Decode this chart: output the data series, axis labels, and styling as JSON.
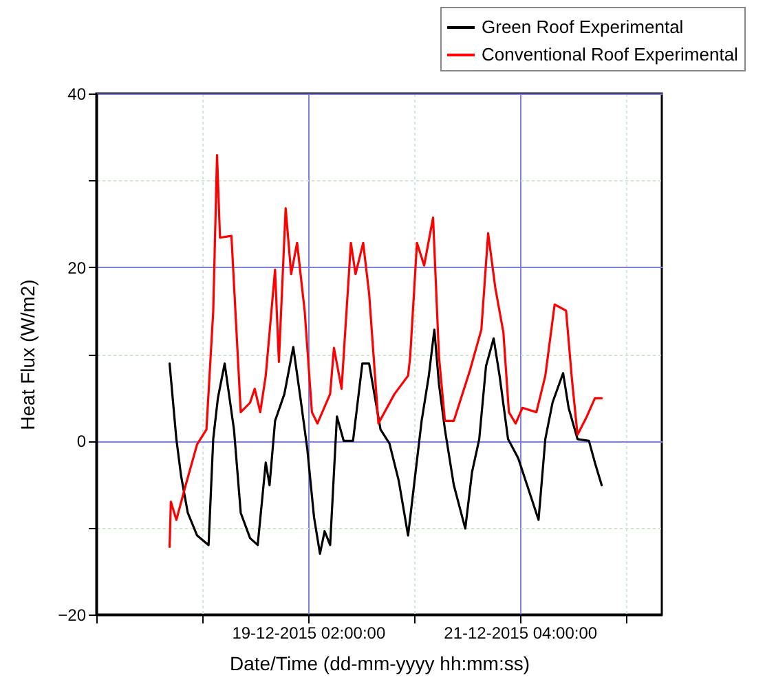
{
  "chart_data": {
    "type": "line",
    "xlabel": "Date/Time (dd-mm-yyyy hh:mm:ss)",
    "ylabel": "Heat Flux (W/m2)",
    "xlim": [
      "2015-12-17T00:00",
      "2015-12-22T13:30"
    ],
    "xticks": [
      {
        "value": "2015-12-17T00:00",
        "label": null
      },
      {
        "value": "2015-12-18T01:00",
        "label": null
      },
      {
        "value": "2015-12-19T02:00",
        "label": "19-12-2015 02:00:00"
      },
      {
        "value": "2015-12-20T03:00",
        "label": null
      },
      {
        "value": "2015-12-21T04:00",
        "label": "21-12-2015 04:00:00"
      },
      {
        "value": "2015-12-22T05:00",
        "label": null
      }
    ],
    "ylim": [
      -20,
      40
    ],
    "yticks": [
      -20,
      {
        "value": -10,
        "label": null
      },
      0,
      {
        "value": 10,
        "label": null
      },
      20,
      {
        "value": 30,
        "label": null
      },
      40
    ],
    "grid": true,
    "legend": "top right",
    "line_style": "solid",
    "series": [
      {
        "name": "Green Roof Experimental",
        "color": "#000000",
        "x": [
          "2015-12-17T17:18",
          "2015-12-17T18:54",
          "2015-12-17T20:00",
          "2015-12-17T21:36",
          "2015-12-17T23:48",
          "2015-12-18T02:30",
          "2015-12-18T03:36",
          "2015-12-18T04:42",
          "2015-12-18T06:18",
          "2015-12-18T08:30",
          "2015-12-18T10:06",
          "2015-12-18T12:18",
          "2015-12-18T14:06",
          "2015-12-18T16:00",
          "2015-12-18T16:54",
          "2015-12-18T18:12",
          "2015-12-18T20:24",
          "2015-12-18T22:30",
          "2015-12-19T00:12",
          "2015-12-19T01:48",
          "2015-12-19T03:24",
          "2015-12-19T04:48",
          "2015-12-19T05:54",
          "2015-12-19T07:12",
          "2015-12-19T08:48",
          "2015-12-19T10:24",
          "2015-12-19T12:36",
          "2015-12-19T14:48",
          "2015-12-19T16:24",
          "2015-12-19T19:06",
          "2015-12-19T21:12",
          "2015-12-19T23:24",
          "2015-12-20T01:36",
          "2015-12-20T04:48",
          "2015-12-20T06:30",
          "2015-12-20T07:48",
          "2015-12-20T08:54",
          "2015-12-20T10:18",
          "2015-12-20T12:24",
          "2015-12-20T15:06",
          "2015-12-20T16:42",
          "2015-12-20T18:24",
          "2015-12-20T20:00",
          "2015-12-20T21:48",
          "2015-12-20T23:12",
          "2015-12-21T01:12",
          "2015-12-21T03:36",
          "2015-12-21T05:42",
          "2015-12-21T08:24",
          "2015-12-21T10:00",
          "2015-12-21T11:42",
          "2015-12-21T14:12",
          "2015-12-21T15:30",
          "2015-12-21T17:36",
          "2015-12-21T20:18",
          "2015-12-21T21:42",
          "2015-12-21T23:18"
        ],
        "values": [
          8.9,
          0.2,
          -4,
          -8.3,
          -10.9,
          -12,
          0.2,
          4.9,
          8.9,
          1.3,
          -8.3,
          -11.2,
          -12,
          -2.5,
          -5.1,
          2.3,
          5.4,
          10.8,
          4.9,
          -0.9,
          -8.8,
          -13,
          -10.4,
          -12,
          2.8,
          0,
          0,
          8.9,
          8.9,
          1.3,
          -0.3,
          -4.6,
          -10.9,
          2.3,
          7.5,
          12.8,
          6.5,
          1.3,
          -5.1,
          -10.1,
          -3.6,
          0.2,
          8.6,
          11.8,
          7.5,
          0.2,
          -2,
          -5.1,
          -9.1,
          0.2,
          4.4,
          7.8,
          3.8,
          0.2,
          0,
          -2.5,
          -5.1
        ]
      },
      {
        "name": "Conventional Roof Experimental",
        "color": "#ff0000",
        "x": [
          "2015-12-17T17:18",
          "2015-12-17T17:36",
          "2015-12-17T18:54",
          "2015-12-17T21:06",
          "2015-12-17T23:48",
          "2015-12-18T02:00",
          "2015-12-18T03:36",
          "2015-12-18T04:30",
          "2015-12-18T05:12",
          "2015-12-18T07:54",
          "2015-12-18T10:06",
          "2015-12-18T12:18",
          "2015-12-18T13:24",
          "2015-12-18T14:42",
          "2015-12-18T16:00",
          "2015-12-18T18:12",
          "2015-12-18T19:06",
          "2015-12-18T20:42",
          "2015-12-18T22:00",
          "2015-12-18T23:24",
          "2015-12-19T01:12",
          "2015-12-19T02:54",
          "2015-12-19T04:12",
          "2015-12-19T07:12",
          "2015-12-19T08:06",
          "2015-12-19T09:54",
          "2015-12-19T12:06",
          "2015-12-19T13:12",
          "2015-12-19T15:00",
          "2015-12-19T16:24",
          "2015-12-19T18:36",
          "2015-12-19T22:24",
          "2015-12-20T01:36",
          "2015-12-20T02:06",
          "2015-12-20T03:42",
          "2015-12-20T05:24",
          "2015-12-20T07:30",
          "2015-12-20T08:54",
          "2015-12-20T10:18",
          "2015-12-20T12:24",
          "2015-12-20T16:12",
          "2015-12-20T18:54",
          "2015-12-20T20:30",
          "2015-12-20T22:12",
          "2015-12-21T00:06",
          "2015-12-21T01:24",
          "2015-12-21T03:00",
          "2015-12-21T04:36",
          "2015-12-21T07:54",
          "2015-12-21T10:00",
          "2015-12-21T12:12",
          "2015-12-21T14:54",
          "2015-12-21T16:18",
          "2015-12-21T17:36",
          "2015-12-21T19:48",
          "2015-12-21T21:42",
          "2015-12-21T23:18"
        ],
        "values": [
          -12.2,
          -7,
          -9.1,
          -5.1,
          -0.4,
          1.3,
          14.9,
          32.9,
          23.4,
          23.6,
          3.3,
          4.4,
          6,
          3.3,
          7.5,
          19.7,
          9.1,
          26.8,
          19.2,
          22.8,
          14.9,
          3.3,
          2,
          5.4,
          10.7,
          6,
          22.8,
          19.2,
          22.8,
          17,
          2,
          5.4,
          7.5,
          9.7,
          22.8,
          20.2,
          25.7,
          9.7,
          2.3,
          2.3,
          8.1,
          12.8,
          23.9,
          17.6,
          12.5,
          3.3,
          2,
          3.8,
          3.3,
          7.5,
          15.7,
          15,
          7,
          0.7,
          2.8,
          4.9,
          4.9
        ]
      }
    ]
  }
}
